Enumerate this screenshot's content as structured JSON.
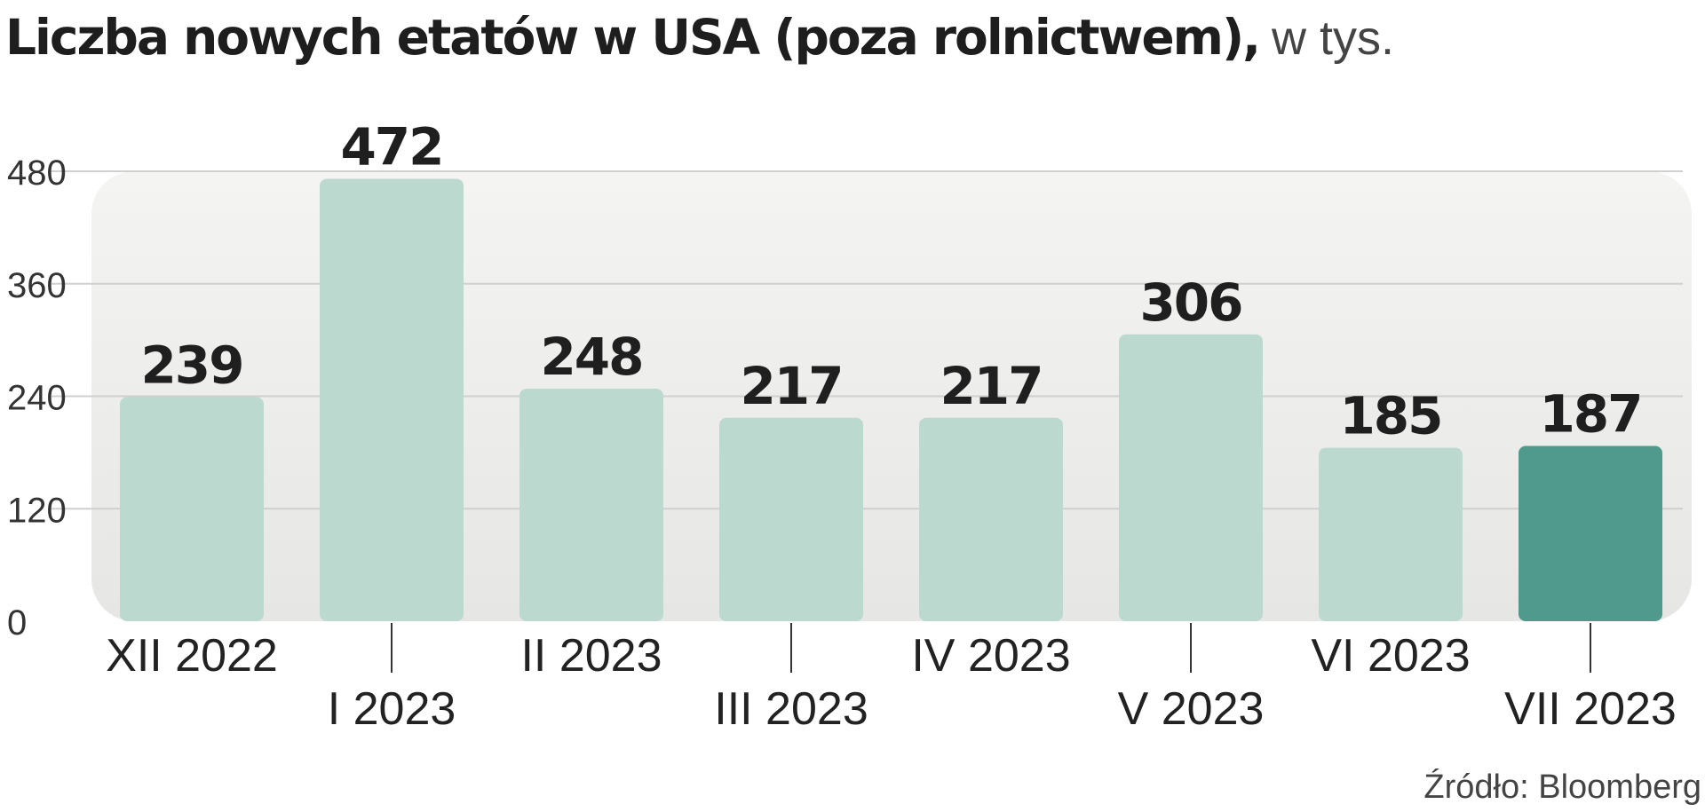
{
  "header": {
    "title": "Liczba nowych etatów w USA (poza rolnictwem),",
    "unit": "w tys."
  },
  "footer": {
    "source": "Źródło: Bloomberg"
  },
  "colors": {
    "background_panel": "#ececea",
    "bar": "#bcd9d0",
    "bar_highlight": "#4f9a8c",
    "gridline": "#d0d0d0",
    "text": "#1f1f1f"
  },
  "chart_data": {
    "type": "bar",
    "categories": [
      "XII 2022",
      "I 2023",
      "II 2023",
      "III 2023",
      "IV 2023",
      "V 2023",
      "VI 2023",
      "VII 2023"
    ],
    "values": [
      239,
      472,
      248,
      217,
      217,
      306,
      185,
      187
    ],
    "data_labels": [
      "239",
      "472",
      "248",
      "217",
      "217",
      "306",
      "185",
      "187"
    ],
    "highlight_index": 7,
    "ylim": [
      0,
      480
    ],
    "yticks": [
      0,
      120,
      240,
      360,
      480
    ],
    "ytick_labels": [
      "0",
      "120",
      "240",
      "360",
      "480"
    ],
    "grid": true,
    "legend": "none"
  }
}
